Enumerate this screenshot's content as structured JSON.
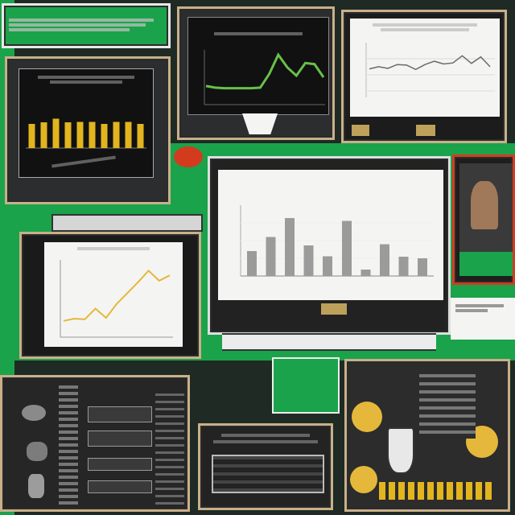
{
  "colors": {
    "background_green": "#1aa34a",
    "panel_dark": "#2b2d2f",
    "panel_frame": "#c9b08a",
    "bar_yellow": "#e2b51f",
    "line_green": "#68c04a",
    "line_gold": "#e5b83b",
    "bar_gray": "#9b9b9b",
    "accent_red": "#d33b1f"
  },
  "texts": {
    "top_left_banner": "",
    "center_chart_title_line1": "",
    "center_chart_title_line2": "",
    "center_bottom_banner": ""
  },
  "chart_data": [
    {
      "type": "bar",
      "values": [
        5.2,
        5.5,
        6.3,
        5.5,
        5.6,
        5.6,
        5.2,
        5.6,
        5.6,
        5.2
      ],
      "ylim": [
        0,
        10
      ]
    },
    {
      "type": "line",
      "values": [
        3.4,
        3.1,
        3.0,
        3.0,
        3.0,
        3.0,
        3.1,
        5.6,
        9.1,
        6.8,
        5.3,
        7.6,
        7.4,
        5.0
      ],
      "ylim": [
        0,
        10
      ]
    },
    {
      "type": "line",
      "values": [
        5.2,
        5.6,
        5.3,
        6.0,
        5.9,
        5.1,
        6.0,
        6.6,
        6.1,
        6.3,
        7.6,
        6.2,
        7.4,
        5.6
      ],
      "ylim": [
        0,
        10
      ]
    },
    {
      "type": "line",
      "values": [
        2.1,
        2.4,
        2.3,
        3.7,
        2.5,
        4.3,
        5.7,
        7.1,
        8.6,
        7.3,
        8.0
      ],
      "ylim": [
        0,
        10
      ]
    },
    {
      "type": "bar",
      "values": [
        3.5,
        5.5,
        8.2,
        4.3,
        2.8,
        7.8,
        0.9,
        4.5,
        2.7,
        2.5
      ],
      "ylim": [
        0,
        10
      ]
    }
  ]
}
